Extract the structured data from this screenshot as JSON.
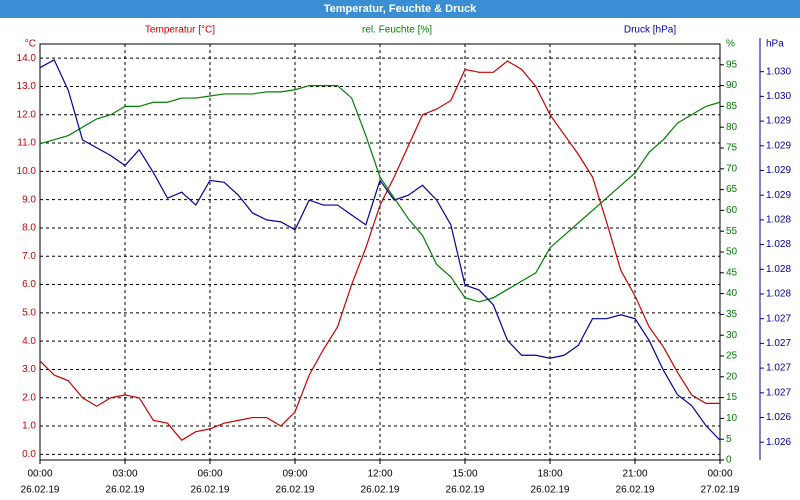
{
  "chart_data": {
    "type": "line",
    "title": "Temperatur, Feuchte & Druck",
    "x": [
      0,
      0.5,
      1,
      1.5,
      2,
      2.5,
      3,
      3.5,
      4,
      4.5,
      5,
      5.5,
      6,
      6.5,
      7,
      7.5,
      8,
      8.5,
      9,
      9.5,
      10,
      10.5,
      11,
      11.5,
      12,
      12.5,
      13,
      13.5,
      14,
      14.5,
      15,
      15.5,
      16,
      16.5,
      17,
      17.5,
      18,
      18.5,
      19,
      19.5,
      20,
      20.5,
      21,
      21.5,
      22,
      22.5,
      23,
      23.5,
      24
    ],
    "xlim": [
      0,
      24
    ],
    "xticks": [
      {
        "value": 0,
        "label": "00:00"
      },
      {
        "value": 3,
        "label": "03:00"
      },
      {
        "value": 6,
        "label": "06:00"
      },
      {
        "value": 9,
        "label": "09:00"
      },
      {
        "value": 12,
        "label": "12:00"
      },
      {
        "value": 15,
        "label": "15:00"
      },
      {
        "value": 18,
        "label": "18:00"
      },
      {
        "value": 21,
        "label": "21:00"
      },
      {
        "value": 24,
        "label": "00:00"
      }
    ],
    "xtick_dates": [
      "26.02.19",
      "26.02.19",
      "26.02.19",
      "26.02.19",
      "26.02.19",
      "26.02.19",
      "26.02.19",
      "26.02.19",
      "27.02.19"
    ],
    "ylim": [
      -0.2,
      14.5
    ],
    "yticks": [
      {
        "value": 0,
        "label": "0.0"
      },
      {
        "value": 1,
        "label": "1.0"
      },
      {
        "value": 2,
        "label": "2.0"
      },
      {
        "value": 3,
        "label": "3.0"
      },
      {
        "value": 4,
        "label": "4.0"
      },
      {
        "value": 5,
        "label": "5.0"
      },
      {
        "value": 6,
        "label": "6.0"
      },
      {
        "value": 7,
        "label": "7.0"
      },
      {
        "value": 8,
        "label": "8.0"
      },
      {
        "value": 9,
        "label": "9.0"
      },
      {
        "value": 10,
        "label": "10.0"
      },
      {
        "value": 11,
        "label": "11.0"
      },
      {
        "value": 12,
        "label": "12.0"
      },
      {
        "value": 13,
        "label": "13.0"
      },
      {
        "value": 14,
        "label": "14.0"
      }
    ],
    "y_unit": "°C",
    "y2lim": [
      0,
      100
    ],
    "y2ticks": [
      0,
      5,
      10,
      15,
      20,
      25,
      30,
      35,
      40,
      45,
      50,
      55,
      60,
      65,
      70,
      75,
      80,
      85,
      90,
      95
    ],
    "y2_unit": "%",
    "y3lim": [
      1.02582,
      1.03003
    ],
    "y3ticks": [
      {
        "value": 1.026,
        "label": "1.026"
      },
      {
        "value": 1.02625,
        "label": "1.026"
      },
      {
        "value": 1.0265,
        "label": "1.027"
      },
      {
        "value": 1.02675,
        "label": "1.027"
      },
      {
        "value": 1.027,
        "label": "1.027"
      },
      {
        "value": 1.02725,
        "label": "1.027"
      },
      {
        "value": 1.0275,
        "label": "1.028"
      },
      {
        "value": 1.02775,
        "label": "1.028"
      },
      {
        "value": 1.028,
        "label": "1.028"
      },
      {
        "value": 1.02825,
        "label": "1.028"
      },
      {
        "value": 1.0285,
        "label": "1.029"
      },
      {
        "value": 1.02875,
        "label": "1.029"
      },
      {
        "value": 1.029,
        "label": "1.029"
      },
      {
        "value": 1.02925,
        "label": "1.029"
      },
      {
        "value": 1.0295,
        "label": "1.030"
      },
      {
        "value": 1.02975,
        "label": "1.030"
      }
    ],
    "y3_unit": "hPa",
    "grid": true,
    "series": [
      {
        "name": "Temperatur [°C]",
        "color": "#cc0000",
        "axis": "y",
        "values": [
          3.3,
          2.8,
          2.6,
          2.0,
          1.7,
          2.0,
          2.1,
          2.0,
          1.2,
          1.1,
          0.5,
          0.8,
          0.9,
          1.1,
          1.2,
          1.3,
          1.3,
          1.0,
          1.5,
          2.8,
          3.7,
          4.5,
          6.0,
          7.3,
          8.8,
          9.8,
          10.9,
          12.0,
          12.2,
          12.5,
          13.6,
          13.5,
          13.5,
          13.9,
          13.6,
          13.0,
          12.0,
          11.3,
          10.6,
          9.8,
          8.2,
          6.5,
          5.6,
          4.5,
          3.8,
          2.9,
          2.1,
          1.8,
          1.8
        ]
      },
      {
        "name": "rel. Feuchte [%]",
        "color": "#008000",
        "axis": "y2",
        "values": [
          76,
          77,
          78,
          80,
          82,
          83,
          85,
          85,
          86,
          86,
          87,
          87,
          87.5,
          88,
          88,
          88,
          88.5,
          88.5,
          89,
          90,
          90,
          90,
          87,
          78,
          68,
          63,
          58,
          54,
          47,
          44,
          39,
          38,
          39,
          41,
          43,
          45,
          51,
          54,
          57,
          60,
          63,
          66,
          69,
          74,
          77,
          81,
          83,
          85,
          86
        ]
      },
      {
        "name": "Druck [hPa]",
        "color": "#0000a0",
        "axis": "y3",
        "values": [
          1.02979,
          1.02987,
          1.02956,
          1.02906,
          1.02898,
          1.0289,
          1.0288,
          1.02896,
          1.02873,
          1.02847,
          1.02853,
          1.0284,
          1.02865,
          1.02863,
          1.0285,
          1.02832,
          1.02825,
          1.02823,
          1.02815,
          1.02845,
          1.0284,
          1.0284,
          1.0283,
          1.0282,
          1.02865,
          1.02845,
          1.0285,
          1.0286,
          1.02845,
          1.0282,
          1.02759,
          1.02754,
          1.02739,
          1.02703,
          1.02688,
          1.02688,
          1.02685,
          1.02688,
          1.02698,
          1.02725,
          1.02725,
          1.02729,
          1.02725,
          1.02703,
          1.02673,
          1.02648,
          1.02637,
          1.02617,
          1.02602
        ]
      }
    ]
  }
}
